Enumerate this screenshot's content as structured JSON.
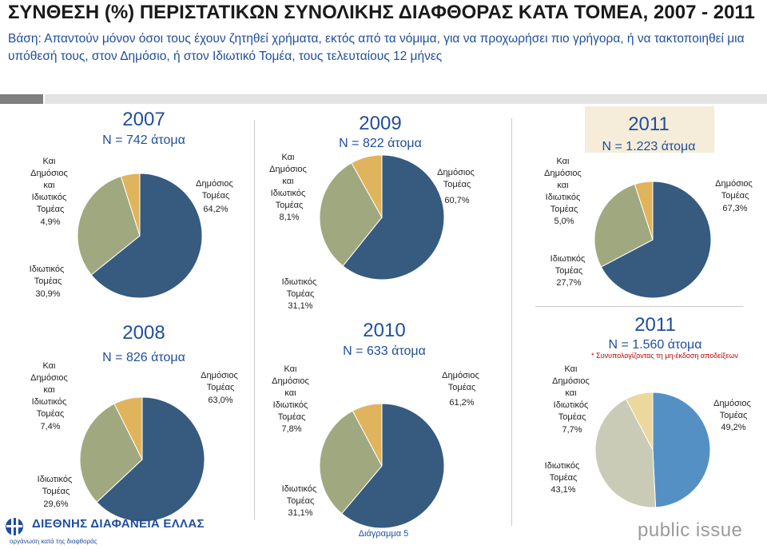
{
  "header": {
    "title": "ΣΥΝΘΕΣΗ (%) ΠΕΡΙΣΤΑΤΙΚΩΝ ΣΥΝΟΛΙΚΗΣ ΔΙΑΦΘΟΡΑΣ ΚΑΤΑ ΤΟΜΕΑ, 2007 - 2011",
    "basis": "Βάση: Απαντούν μόνον όσοι τους έχουν ζητηθεί χρήματα, εκτός από τα νόμιμα, για να προχωρήσει πιο γρήγορα, ή να τακτοποιηθεί μια υπόθεσή τους, στον Δημόσιο, ή στον Ιδιωτικό Τομέα, τους τελευταίους 12 μήνες"
  },
  "footer": {
    "org_name": "ΔΙΕΘΝΗΣ ΔΙΑΦΑΝΕΙΑ ΕΛΛΑΣ",
    "org_tagline": "οργάνωση κατά της διαφθοράς",
    "diagram_label": "Διάγραμμα 5",
    "pollster": "public issue"
  },
  "colors": {
    "public": "#375a7f",
    "private": "#a0a87f",
    "both": "#dfb45c",
    "public_2011b": "#5590c4",
    "private_2011b": "#c9cbb6",
    "both_2011b": "#ecd79d",
    "year_box": "#f5ecd9"
  },
  "chart_data": [
    {
      "type": "pie",
      "title": "2007",
      "subtitle": "N = 742 άτομα",
      "labels": [
        "Δημόσιος Τομέας",
        "Ιδιωτικός Τομέας",
        "Και Δημόσιος και Ιδιωτικός Τομέας"
      ],
      "values": [
        64.2,
        30.9,
        4.9
      ],
      "value_labels": [
        "64,2%",
        "30,9%",
        "4,9%"
      ]
    },
    {
      "type": "pie",
      "title": "2008",
      "subtitle": "N = 826 άτομα",
      "labels": [
        "Δημόσιος Τομέας",
        "Ιδιωτικός Τομέας",
        "Και Δημόσιος και Ιδιωτικός Τομέας"
      ],
      "values": [
        63.0,
        29.6,
        7.4
      ],
      "value_labels": [
        "63,0%",
        "29,6%",
        "7,4%"
      ]
    },
    {
      "type": "pie",
      "title": "2009",
      "subtitle": "N = 822 άτομα",
      "labels": [
        "Δημόσιος Τομέας",
        "Ιδιωτικός Τομέας",
        "Και Δημόσιος και Ιδιωτικός Τομέας"
      ],
      "values": [
        60.7,
        31.1,
        8.1
      ],
      "value_labels": [
        "60,7%",
        "31,1%",
        "8,1%"
      ]
    },
    {
      "type": "pie",
      "title": "2010",
      "subtitle": "N = 633 άτομα",
      "labels": [
        "Δημόσιος Τομέας",
        "Ιδιωτικός Τομέας",
        "Και Δημόσιος και Ιδιωτικός Τομέας"
      ],
      "values": [
        61.2,
        31.1,
        7.8
      ],
      "value_labels": [
        "61,2%",
        "31,1%",
        "7,8%"
      ]
    },
    {
      "type": "pie",
      "title": "2011",
      "subtitle": "N = 1.223 άτομα",
      "labels": [
        "Δημόσιος Τομέας",
        "Ιδιωτικός Τομέας",
        "Και Δημόσιος και Ιδιωτικός Τομέας"
      ],
      "values": [
        67.3,
        27.7,
        5.0
      ],
      "value_labels": [
        "67,3%",
        "27,7%",
        "5,0%"
      ]
    },
    {
      "type": "pie",
      "title": "2011",
      "subtitle": "N = 1.560 άτομα",
      "note": "* Συνυπολογίζοντας τη μη-έκδοση αποδείξεων",
      "labels": [
        "Δημόσιος Τομέας",
        "Ιδιωτικός Τομέας",
        "Και Δημόσιος και Ιδιωτικός Τομέας"
      ],
      "values": [
        49.2,
        43.1,
        7.7
      ],
      "value_labels": [
        "49,2%",
        "43,1%",
        "7,7%"
      ]
    }
  ]
}
